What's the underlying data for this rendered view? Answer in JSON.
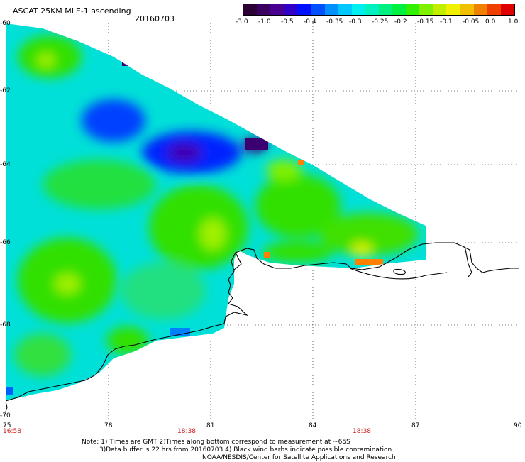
{
  "title": "ASCAT 25KM MLE-1 ascending",
  "date": "20160703",
  "colorbar": {
    "colors": [
      "#2a0035",
      "#3a0060",
      "#4a0090",
      "#3000c8",
      "#0010ff",
      "#0050ff",
      "#0090ff",
      "#00c8ff",
      "#00f0f0",
      "#00f0c0",
      "#00f080",
      "#00f040",
      "#30f000",
      "#80f000",
      "#c0f000",
      "#f0f000",
      "#f0c000",
      "#f08000",
      "#f04000",
      "#e00000"
    ],
    "labels": [
      "-3.0",
      "-1.0",
      "-0.5",
      "-0.4",
      "-0.35",
      "-0.3",
      "-0.25",
      "-0.2",
      "-0.15",
      "-0.1",
      "-0.05",
      "0.0",
      "1.0"
    ]
  },
  "axes": {
    "x_ticks": [
      "75",
      "78",
      "81",
      "84",
      "87",
      "90"
    ],
    "y_ticks": [
      "-60",
      "-62",
      "-64",
      "-66",
      "-68",
      "-70"
    ],
    "time_labels": [
      "16:58",
      "18:38",
      "18:38"
    ]
  },
  "note": {
    "line1": "Note: 1) Times are GMT 2)Times along bottom correspond to measurement at ~65S",
    "line2": "3)Data buffer is 22 hrs from 20160703 4) Black wind barbs indicate possible contamination",
    "line3": "NOAA/NESDIS/Center for Satellite Applications and Research"
  }
}
